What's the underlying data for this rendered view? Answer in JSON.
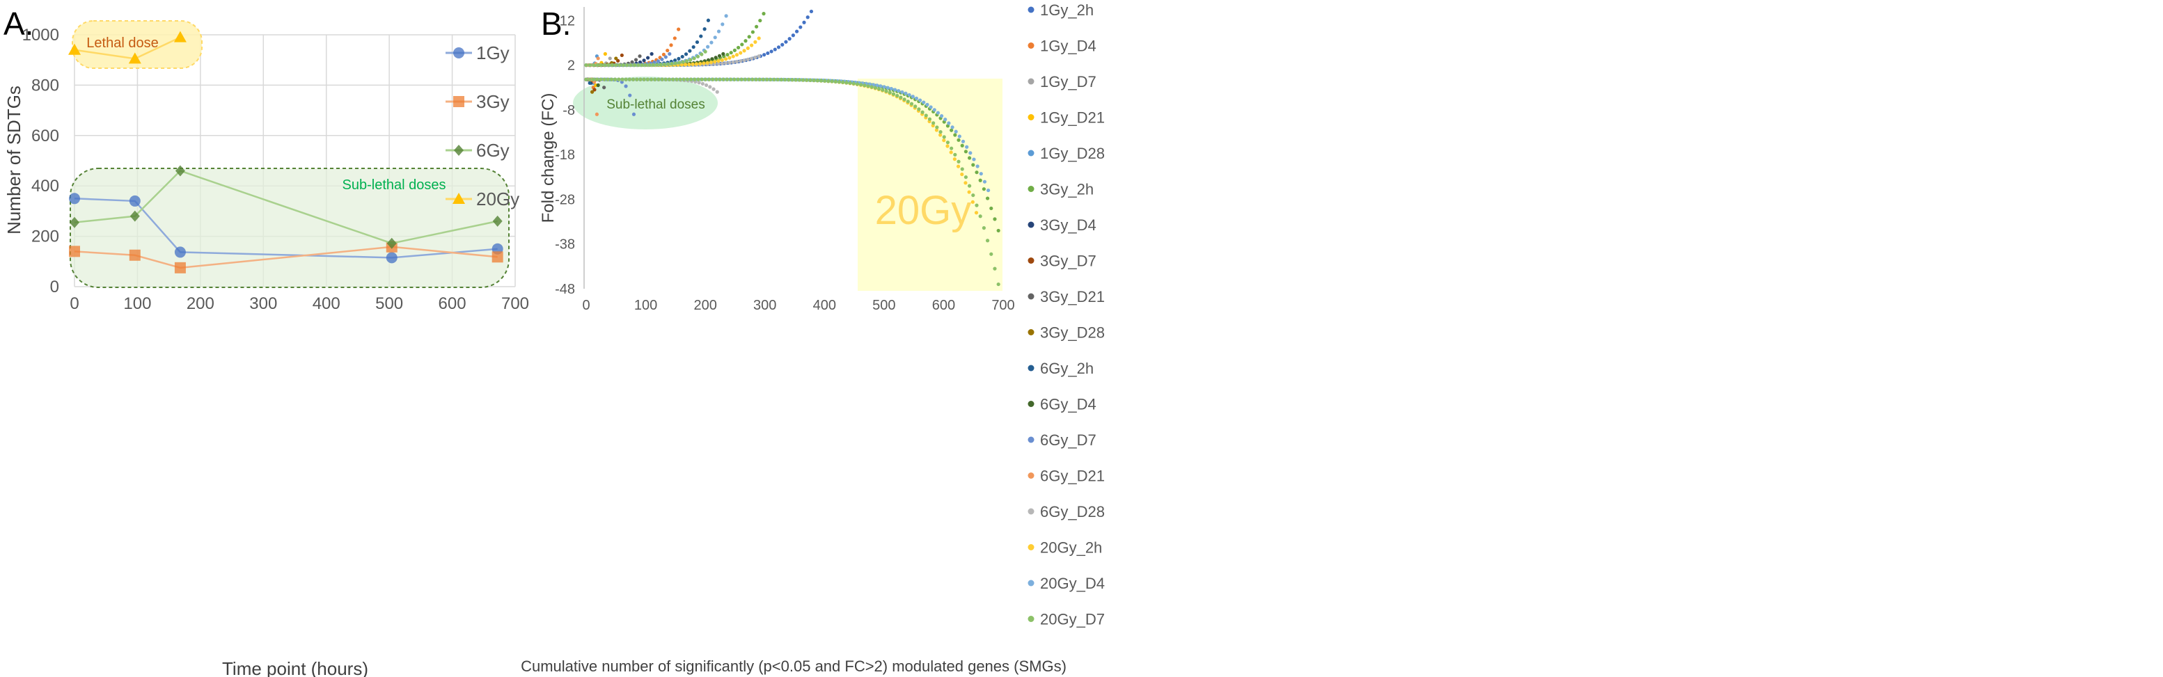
{
  "panel_a_letter": "A.",
  "panel_b_letter": "B.",
  "chart_data": [
    {
      "type": "line",
      "title": "",
      "xlabel": "Time point (hours)",
      "ylabel": "Number of SDTGs",
      "xlim": [
        0,
        700
      ],
      "ylim": [
        0,
        1000
      ],
      "xticks": [
        0,
        100,
        200,
        300,
        400,
        500,
        600,
        700
      ],
      "yticks": [
        0,
        200,
        400,
        600,
        800,
        1000
      ],
      "grid": true,
      "legend_position": "right",
      "series": [
        {
          "name": "1Gy",
          "color": "#4472c4",
          "line_color": "#8eaadb",
          "marker": "circle",
          "x": [
            0,
            96,
            168,
            504,
            672
          ],
          "values": [
            350,
            340,
            137,
            115,
            150
          ]
        },
        {
          "name": "3Gy",
          "color": "#ed7d31",
          "line_color": "#f4b183",
          "marker": "square",
          "x": [
            0,
            96,
            168,
            504,
            672
          ],
          "values": [
            140,
            125,
            75,
            158,
            118
          ]
        },
        {
          "name": "6Gy",
          "color": "#548235",
          "line_color": "#a9d18e",
          "marker": "diamond",
          "x": [
            0,
            96,
            168,
            504,
            672
          ],
          "values": [
            255,
            280,
            460,
            172,
            260
          ]
        },
        {
          "name": "20Gy",
          "color": "#ffc000",
          "line_color": "#ffd966",
          "marker": "triangle",
          "x": [
            0,
            96,
            168
          ],
          "values": [
            940,
            905,
            990
          ]
        }
      ],
      "annotations": [
        {
          "text": "Lethal dose",
          "color": "#c55a11"
        },
        {
          "text": "Sub-lethal doses",
          "color": "#00b050"
        }
      ]
    },
    {
      "type": "scatter",
      "title": "",
      "xlabel": "Cumulative number of significantly (p<0.05 and FC>2) modulated genes (SMGs)",
      "ylabel": "Fold change (FC)",
      "xlim": [
        0,
        700
      ],
      "ylim": [
        -48,
        15
      ],
      "xticks": [
        0,
        100,
        200,
        300,
        400,
        500,
        600,
        700
      ],
      "yticks": [
        12,
        2,
        -8,
        -18,
        -28,
        -38,
        -48
      ],
      "grid": false,
      "legend_position": "right",
      "series": [
        {
          "name": "1Gy_2h",
          "color": "#4472c4",
          "n_up": 378,
          "max_up": 14,
          "n_down": 0,
          "min_down": -1
        },
        {
          "name": "1Gy_D4",
          "color": "#ed7d31",
          "n_up": 155,
          "max_up": 10,
          "n_down": 12,
          "min_down": -3
        },
        {
          "name": "1Gy_D7",
          "color": "#a5a5a5",
          "n_up": 40,
          "max_up": 3.5,
          "n_down": 20,
          "min_down": -2.5
        },
        {
          "name": "1Gy_D21",
          "color": "#ffc000",
          "n_up": 32,
          "max_up": 4.5,
          "n_down": 16,
          "min_down": -2.5
        },
        {
          "name": "1Gy_D28",
          "color": "#5b9bd5",
          "n_up": 18,
          "max_up": 4,
          "n_down": 12,
          "min_down": -2
        },
        {
          "name": "3Gy_2h",
          "color": "#70ad47",
          "n_up": 298,
          "max_up": 13.5,
          "n_down": 692,
          "min_down": -35
        },
        {
          "name": "3Gy_D4",
          "color": "#264478",
          "n_up": 110,
          "max_up": 4.5,
          "n_down": 8,
          "min_down": -2
        },
        {
          "name": "3Gy_D7",
          "color": "#9e480e",
          "n_up": 60,
          "max_up": 4.2,
          "n_down": 14,
          "min_down": -3.5
        },
        {
          "name": "3Gy_D21",
          "color": "#636363",
          "n_up": 90,
          "max_up": 4,
          "n_down": 30,
          "min_down": -3
        },
        {
          "name": "3Gy_D28",
          "color": "#997300",
          "n_up": 50,
          "max_up": 3.5,
          "n_down": 10,
          "min_down": -4
        },
        {
          "name": "6Gy_2h",
          "color": "#255e91",
          "n_up": 205,
          "max_up": 12,
          "n_down": 6,
          "min_down": -2
        },
        {
          "name": "6Gy_D4",
          "color": "#43682b",
          "n_up": 230,
          "max_up": 4.5,
          "n_down": 20,
          "min_down": -2.5
        },
        {
          "name": "6Gy_D7",
          "color": "#698ed0",
          "n_up": 140,
          "max_up": 4.5,
          "n_down": 80,
          "min_down": -9
        },
        {
          "name": "6Gy_D21",
          "color": "#f1975a",
          "n_up": 20,
          "max_up": 3.5,
          "n_down": 18,
          "min_down": -9
        },
        {
          "name": "6Gy_D28",
          "color": "#b7b7b7",
          "n_up": 290,
          "max_up": 4,
          "n_down": 220,
          "min_down": -4
        },
        {
          "name": "20Gy_2h",
          "color": "#ffcd33",
          "n_up": 290,
          "max_up": 8,
          "n_down": 655,
          "min_down": -31
        },
        {
          "name": "20Gy_D4",
          "color": "#7cafdd",
          "n_up": 235,
          "max_up": 13,
          "n_down": 675,
          "min_down": -26
        },
        {
          "name": "20Gy_D7",
          "color": "#8cc168",
          "n_up": 200,
          "max_up": 5,
          "n_down": 692,
          "min_down": -47
        }
      ],
      "annotations": [
        {
          "text": "Sub-lethal doses",
          "color": "#548235"
        },
        {
          "text": "20Gy",
          "color": "#ffd966"
        }
      ]
    }
  ]
}
